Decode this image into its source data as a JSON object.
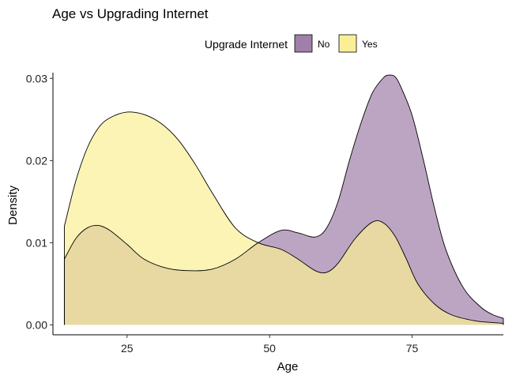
{
  "chart_data": {
    "type": "area",
    "title": "Age vs Upgrading Internet",
    "xlabel": "Age",
    "ylabel": "Density",
    "xlim": [
      12,
      91
    ],
    "ylim": [
      -0.0012,
      0.0307
    ],
    "x_ticks": [
      25,
      50,
      75
    ],
    "x_tick_labels": [
      "25",
      "50",
      "75"
    ],
    "y_ticks": [
      0.0,
      0.01,
      0.02,
      0.03
    ],
    "y_tick_labels": [
      "0.00",
      "0.01",
      "0.02",
      "0.03"
    ],
    "grid": false,
    "legend": {
      "title": "Upgrade Internet",
      "position": "top",
      "entries": [
        "No",
        "Yes"
      ]
    },
    "series": [
      {
        "name": "No",
        "color": "#a07fa8",
        "x": [
          14,
          16,
          18,
          20,
          22,
          25,
          28,
          32,
          36,
          40,
          44,
          48,
          52,
          55,
          58,
          60,
          62,
          64,
          66,
          68,
          70,
          71,
          72,
          73,
          75,
          77,
          79,
          81,
          84,
          87,
          89,
          91
        ],
        "y": [
          0.008,
          0.0105,
          0.0118,
          0.0121,
          0.0115,
          0.0098,
          0.008,
          0.0069,
          0.0066,
          0.0068,
          0.008,
          0.01,
          0.0115,
          0.0112,
          0.0107,
          0.0118,
          0.015,
          0.02,
          0.0245,
          0.0282,
          0.0301,
          0.0304,
          0.0302,
          0.029,
          0.0255,
          0.02,
          0.014,
          0.009,
          0.0045,
          0.0022,
          0.0013,
          0.0008
        ]
      },
      {
        "name": "Yes",
        "color": "#fbef95",
        "x": [
          14,
          16,
          18,
          20,
          22,
          25,
          28,
          31,
          34,
          37,
          40,
          44,
          48,
          52,
          55,
          58,
          60,
          62,
          65,
          68,
          70,
          72,
          74,
          76,
          79,
          82,
          86,
          89,
          91
        ],
        "y": [
          0.012,
          0.0175,
          0.0215,
          0.024,
          0.0252,
          0.0259,
          0.0256,
          0.0245,
          0.0225,
          0.0195,
          0.016,
          0.0118,
          0.01,
          0.0092,
          0.008,
          0.0066,
          0.0064,
          0.0075,
          0.0105,
          0.0125,
          0.0124,
          0.0108,
          0.008,
          0.005,
          0.0025,
          0.0012,
          0.0005,
          0.0003,
          0.0002
        ]
      }
    ]
  }
}
